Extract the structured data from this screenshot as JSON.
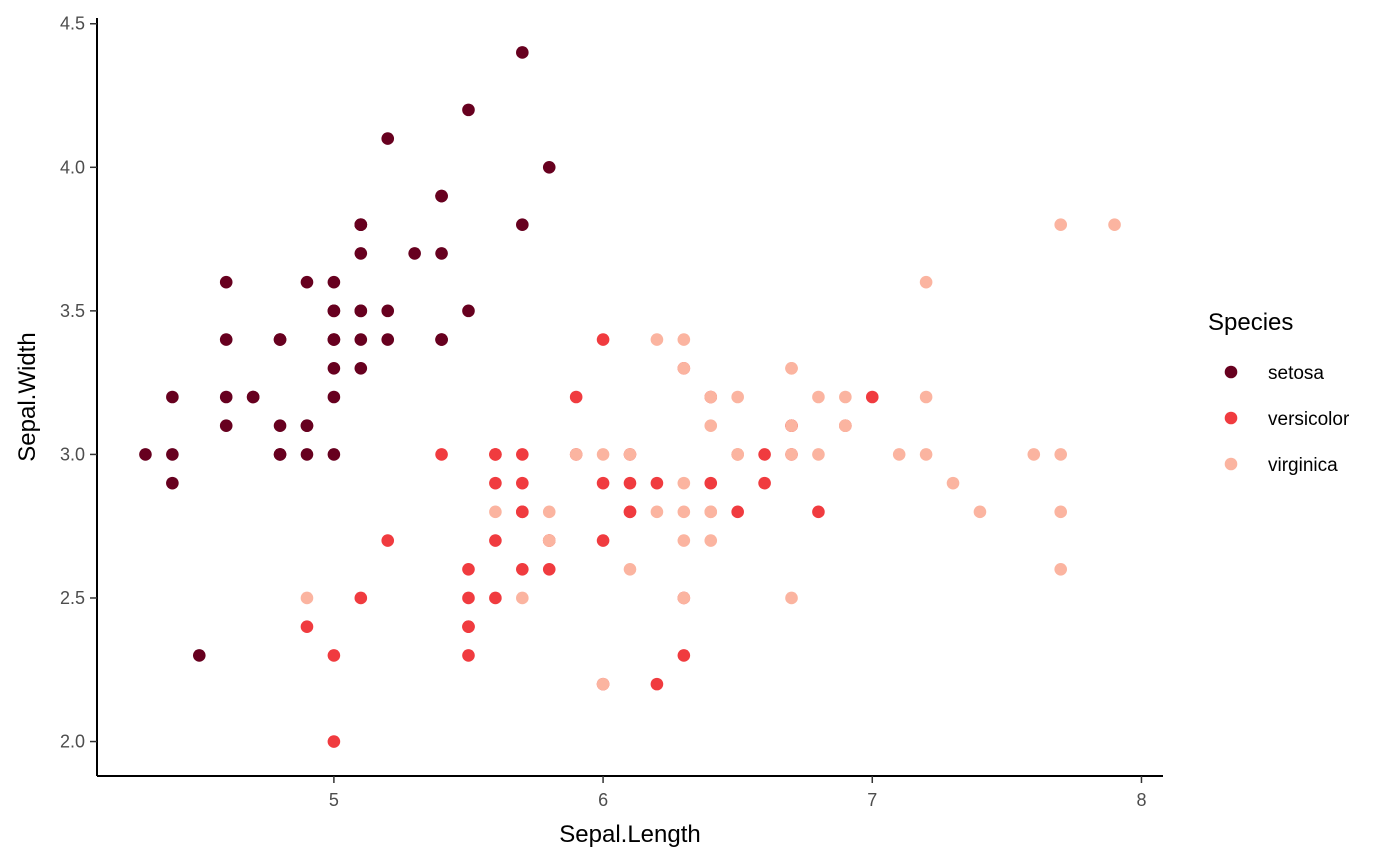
{
  "chart_data": {
    "type": "scatter",
    "title": "",
    "xlabel": "Sepal.Length",
    "ylabel": "Sepal.Width",
    "xlim": [
      4.12,
      8.08
    ],
    "ylim": [
      1.88,
      4.52
    ],
    "xticks": [
      5,
      6,
      7,
      8
    ],
    "xtick_labels": [
      "5",
      "6",
      "7",
      "8"
    ],
    "yticks": [
      2.0,
      2.5,
      3.0,
      3.5,
      4.0,
      4.5
    ],
    "ytick_labels": [
      "2.0",
      "2.5",
      "3.0",
      "3.5",
      "4.0",
      "4.5"
    ],
    "grid": false,
    "legend": {
      "title": "Species",
      "position": "right"
    },
    "series": [
      {
        "name": "setosa",
        "color": "#67001f",
        "points": [
          [
            5.1,
            3.5
          ],
          [
            4.9,
            3.0
          ],
          [
            4.7,
            3.2
          ],
          [
            4.6,
            3.1
          ],
          [
            5.0,
            3.6
          ],
          [
            5.4,
            3.9
          ],
          [
            4.6,
            3.4
          ],
          [
            5.0,
            3.4
          ],
          [
            4.4,
            2.9
          ],
          [
            4.9,
            3.1
          ],
          [
            5.4,
            3.7
          ],
          [
            4.8,
            3.4
          ],
          [
            4.8,
            3.0
          ],
          [
            4.3,
            3.0
          ],
          [
            5.8,
            4.0
          ],
          [
            5.7,
            4.4
          ],
          [
            5.4,
            3.9
          ],
          [
            5.1,
            3.5
          ],
          [
            5.7,
            3.8
          ],
          [
            5.1,
            3.8
          ],
          [
            5.4,
            3.4
          ],
          [
            5.1,
            3.7
          ],
          [
            4.6,
            3.6
          ],
          [
            5.1,
            3.3
          ],
          [
            4.8,
            3.4
          ],
          [
            5.0,
            3.0
          ],
          [
            5.0,
            3.4
          ],
          [
            5.2,
            3.5
          ],
          [
            5.2,
            3.4
          ],
          [
            4.7,
            3.2
          ],
          [
            4.8,
            3.1
          ],
          [
            5.4,
            3.4
          ],
          [
            5.2,
            4.1
          ],
          [
            5.5,
            4.2
          ],
          [
            4.9,
            3.1
          ],
          [
            5.0,
            3.2
          ],
          [
            5.5,
            3.5
          ],
          [
            4.9,
            3.6
          ],
          [
            4.4,
            3.0
          ],
          [
            5.1,
            3.4
          ],
          [
            5.0,
            3.5
          ],
          [
            4.5,
            2.3
          ],
          [
            4.4,
            3.2
          ],
          [
            5.0,
            3.5
          ],
          [
            5.1,
            3.8
          ],
          [
            4.8,
            3.0
          ],
          [
            5.1,
            3.8
          ],
          [
            4.6,
            3.2
          ],
          [
            5.3,
            3.7
          ],
          [
            5.0,
            3.3
          ]
        ]
      },
      {
        "name": "versicolor",
        "color": "#f03b3f",
        "points": [
          [
            7.0,
            3.2
          ],
          [
            6.4,
            3.2
          ],
          [
            6.9,
            3.1
          ],
          [
            5.5,
            2.3
          ],
          [
            6.5,
            2.8
          ],
          [
            5.7,
            2.8
          ],
          [
            6.3,
            3.3
          ],
          [
            4.9,
            2.4
          ],
          [
            6.6,
            2.9
          ],
          [
            5.2,
            2.7
          ],
          [
            5.0,
            2.0
          ],
          [
            5.9,
            3.0
          ],
          [
            6.0,
            2.2
          ],
          [
            6.1,
            2.9
          ],
          [
            5.6,
            2.9
          ],
          [
            6.7,
            3.1
          ],
          [
            5.6,
            3.0
          ],
          [
            5.8,
            2.7
          ],
          [
            6.2,
            2.2
          ],
          [
            5.6,
            2.5
          ],
          [
            5.9,
            3.2
          ],
          [
            6.1,
            2.8
          ],
          [
            6.3,
            2.5
          ],
          [
            6.1,
            2.8
          ],
          [
            6.4,
            2.9
          ],
          [
            6.6,
            3.0
          ],
          [
            6.8,
            2.8
          ],
          [
            6.7,
            3.0
          ],
          [
            6.0,
            2.9
          ],
          [
            5.7,
            2.6
          ],
          [
            5.5,
            2.4
          ],
          [
            5.5,
            2.4
          ],
          [
            5.8,
            2.7
          ],
          [
            6.0,
            2.7
          ],
          [
            5.4,
            3.0
          ],
          [
            6.0,
            3.4
          ],
          [
            6.7,
            3.1
          ],
          [
            6.3,
            2.3
          ],
          [
            5.6,
            3.0
          ],
          [
            5.5,
            2.5
          ],
          [
            5.5,
            2.6
          ],
          [
            6.1,
            3.0
          ],
          [
            5.8,
            2.6
          ],
          [
            5.0,
            2.3
          ],
          [
            5.6,
            2.7
          ],
          [
            5.7,
            3.0
          ],
          [
            5.7,
            2.9
          ],
          [
            6.2,
            2.9
          ],
          [
            5.1,
            2.5
          ],
          [
            5.7,
            2.8
          ]
        ]
      },
      {
        "name": "virginica",
        "color": "#fbb4a0",
        "points": [
          [
            6.3,
            3.3
          ],
          [
            5.8,
            2.7
          ],
          [
            7.1,
            3.0
          ],
          [
            6.3,
            2.9
          ],
          [
            6.5,
            3.0
          ],
          [
            7.6,
            3.0
          ],
          [
            4.9,
            2.5
          ],
          [
            7.3,
            2.9
          ],
          [
            6.7,
            2.5
          ],
          [
            7.2,
            3.6
          ],
          [
            6.5,
            3.2
          ],
          [
            6.4,
            2.7
          ],
          [
            6.8,
            3.0
          ],
          [
            5.7,
            2.5
          ],
          [
            5.8,
            2.8
          ],
          [
            6.4,
            3.2
          ],
          [
            6.5,
            3.0
          ],
          [
            7.7,
            3.8
          ],
          [
            7.7,
            2.6
          ],
          [
            6.0,
            2.2
          ],
          [
            6.9,
            3.2
          ],
          [
            5.6,
            2.8
          ],
          [
            7.7,
            2.8
          ],
          [
            6.3,
            2.7
          ],
          [
            6.7,
            3.3
          ],
          [
            7.2,
            3.2
          ],
          [
            6.2,
            2.8
          ],
          [
            6.1,
            3.0
          ],
          [
            6.4,
            2.8
          ],
          [
            7.2,
            3.0
          ],
          [
            7.4,
            2.8
          ],
          [
            7.9,
            3.8
          ],
          [
            6.4,
            2.8
          ],
          [
            6.3,
            2.8
          ],
          [
            6.1,
            2.6
          ],
          [
            7.7,
            3.0
          ],
          [
            6.3,
            3.4
          ],
          [
            6.4,
            3.1
          ],
          [
            6.0,
            3.0
          ],
          [
            6.9,
            3.1
          ],
          [
            6.7,
            3.1
          ],
          [
            6.9,
            3.1
          ],
          [
            5.8,
            2.7
          ],
          [
            6.8,
            3.2
          ],
          [
            6.7,
            3.3
          ],
          [
            6.7,
            3.0
          ],
          [
            6.3,
            2.5
          ],
          [
            6.5,
            3.0
          ],
          [
            6.2,
            3.4
          ],
          [
            5.9,
            3.0
          ]
        ]
      }
    ]
  }
}
